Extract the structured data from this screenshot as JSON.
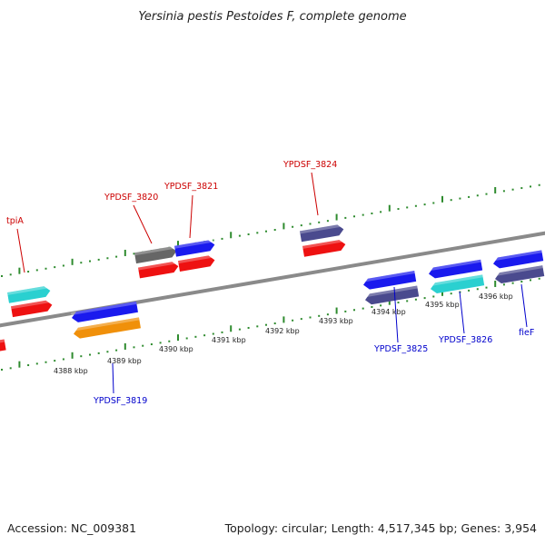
{
  "title": "Yersinia pestis Pestoides F, complete genome",
  "footer": {
    "accession": "Accession: NC_009381",
    "topology": "Topology: circular; Length: 4,517,345 bp; Genes: 3,954"
  },
  "colors": {
    "backbone": "#8a8a8a",
    "tick": "#2e8b2e",
    "label_forward": "#cc0000",
    "label_reverse": "#0000cc"
  },
  "kbp_labels": [
    "4388 kbp",
    "4389 kbp",
    "4390 kbp",
    "4391 kbp",
    "4392 kbp",
    "4393 kbp",
    "4394 kbp",
    "4395 kbp",
    "4396 kbp"
  ],
  "gene_labels": [
    {
      "name": "tpiA",
      "strand": "forward"
    },
    {
      "name": "YPDSF_3820",
      "strand": "forward"
    },
    {
      "name": "YPDSF_3821",
      "strand": "forward"
    },
    {
      "name": "YPDSF_3824",
      "strand": "forward"
    },
    {
      "name": "YPDSF_3819",
      "strand": "reverse"
    },
    {
      "name": "YPDSF_3825",
      "strand": "reverse"
    },
    {
      "name": "YPDSF_3826",
      "strand": "reverse"
    },
    {
      "name": "fieF",
      "strand": "reverse"
    }
  ],
  "features": [
    {
      "strand": "forward",
      "track": "outer",
      "color": "#2ad0d0"
    },
    {
      "strand": "forward",
      "track": "inner",
      "color": "#ee1111"
    },
    {
      "strand": "reverse",
      "track": "inner",
      "color": "#ee1111"
    },
    {
      "strand": "forward",
      "track": "outer",
      "color": "#666666"
    },
    {
      "strand": "forward",
      "track": "outer",
      "color": "#1a1aee"
    },
    {
      "strand": "forward",
      "track": "inner",
      "color": "#ee1111"
    },
    {
      "strand": "forward",
      "track": "inner",
      "color": "#ee1111"
    },
    {
      "strand": "forward",
      "track": "outer",
      "color": "#4a4a8e"
    },
    {
      "strand": "forward",
      "track": "inner",
      "color": "#ee1111"
    },
    {
      "strand": "reverse",
      "track": "inner",
      "color": "#1a1aee"
    },
    {
      "strand": "reverse",
      "track": "outer",
      "color": "#f0900a"
    },
    {
      "strand": "reverse",
      "track": "inner",
      "color": "#1a1aee"
    },
    {
      "strand": "reverse",
      "track": "outer",
      "color": "#4a4a8e"
    },
    {
      "strand": "reverse",
      "track": "inner",
      "color": "#1a1aee"
    },
    {
      "strand": "reverse",
      "track": "outer",
      "color": "#2ad0d0"
    },
    {
      "strand": "reverse",
      "track": "inner",
      "color": "#1a1aee"
    },
    {
      "strand": "reverse",
      "track": "outer",
      "color": "#4a4a8e"
    }
  ]
}
